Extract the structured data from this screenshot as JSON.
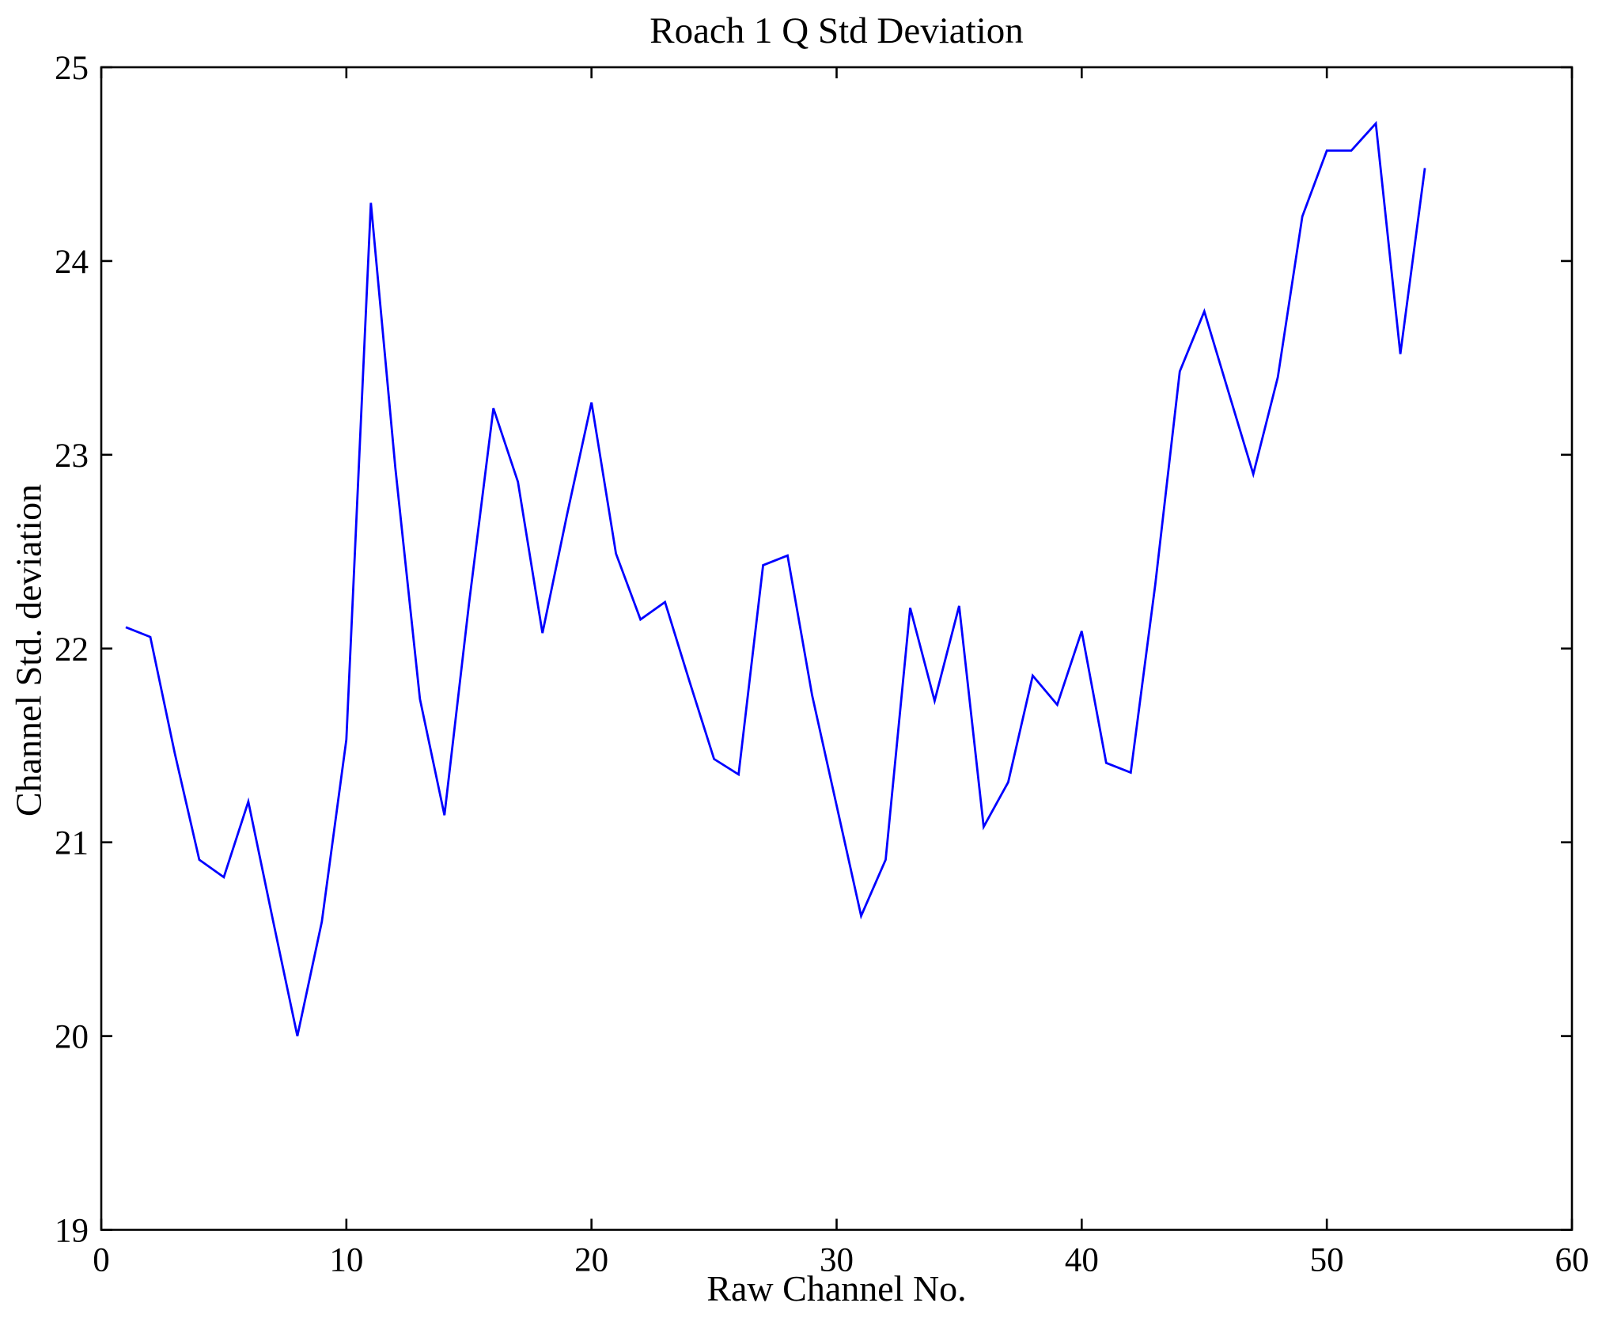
{
  "figure": {
    "title": "Roach 1 Q Std Deviation",
    "xlabel": "Raw Channel No.",
    "ylabel": "Channel Std. deviation"
  },
  "chart_data": {
    "type": "line",
    "title": "Roach 1 Q Std Deviation",
    "xlabel": "Raw Channel No.",
    "ylabel": "Channel Std. deviation",
    "xlim": [
      0,
      60
    ],
    "ylim": [
      19,
      25
    ],
    "xticks": [
      0,
      10,
      20,
      30,
      40,
      50,
      60
    ],
    "yticks": [
      19,
      20,
      21,
      22,
      23,
      24,
      25
    ],
    "grid": false,
    "legend": null,
    "line_color": "#0000ff",
    "axes_color": "#000000",
    "background": "#ffffff",
    "x": [
      1,
      2,
      3,
      4,
      5,
      6,
      7,
      8,
      9,
      10,
      11,
      12,
      13,
      14,
      15,
      16,
      17,
      18,
      19,
      20,
      21,
      22,
      23,
      24,
      25,
      26,
      27,
      28,
      29,
      30,
      31,
      32,
      33,
      34,
      35,
      36,
      37,
      38,
      39,
      40,
      41,
      42,
      43,
      44,
      45,
      46,
      47,
      48,
      49,
      50,
      51,
      52,
      53,
      54
    ],
    "values": [
      22.11,
      22.06,
      21.46,
      20.91,
      20.82,
      21.21,
      20.6,
      20.0,
      20.59,
      21.53,
      24.3,
      22.93,
      21.74,
      21.14,
      22.23,
      23.24,
      22.86,
      22.08,
      22.69,
      23.27,
      22.49,
      22.15,
      22.24,
      21.83,
      21.43,
      21.35,
      22.43,
      22.48,
      21.76,
      21.19,
      20.62,
      20.91,
      22.21,
      21.73,
      22.22,
      21.08,
      21.31,
      21.86,
      21.71,
      22.09,
      21.41,
      21.36,
      22.33,
      23.43,
      23.74,
      23.32,
      22.9,
      23.4,
      24.23,
      24.57,
      24.57,
      24.71,
      23.52,
      24.48
    ]
  }
}
